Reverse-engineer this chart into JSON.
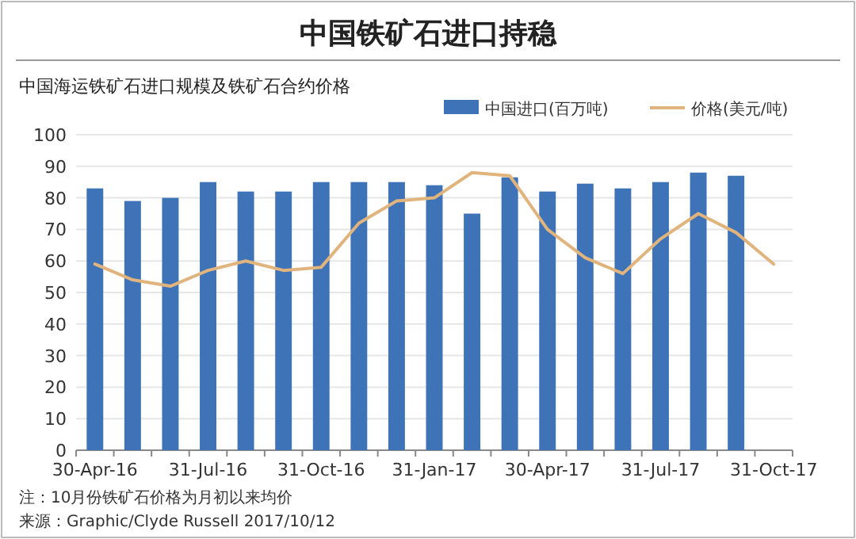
{
  "chart_data": {
    "type": "bar",
    "title": "中国铁矿石进口持稳",
    "subtitle": "中国海运铁矿石进口规模及铁矿石合约价格",
    "categories": [
      "30-Apr-16",
      null,
      null,
      "31-Jul-16",
      null,
      null,
      "31-Oct-16",
      null,
      null,
      "31-Jan-17",
      null,
      null,
      "30-Apr-17",
      null,
      null,
      "31-Jul-17",
      null,
      null,
      "31-Oct-17"
    ],
    "series": [
      {
        "name": "中国进口(百万吨)",
        "color": "#3f73b8",
        "values": [
          83,
          79,
          80,
          85,
          82,
          82,
          85,
          85,
          85,
          84,
          75,
          86.5,
          82,
          84.5,
          83,
          85,
          88,
          87,
          null
        ]
      },
      {
        "name": "价格(美元/吨)",
        "type": "line",
        "color": "#e0b47c",
        "values": [
          59,
          54,
          52,
          57,
          60,
          57,
          58,
          72,
          79,
          80,
          88,
          87,
          70,
          61,
          56,
          67,
          75,
          69,
          59
        ]
      }
    ],
    "ylim": [
      0,
      100
    ],
    "yticks": [
      0,
      10,
      20,
      30,
      40,
      50,
      60,
      70,
      80,
      90,
      100
    ],
    "grid": "y",
    "legend": "top right",
    "annotations": [
      "注：10月份铁矿石价格为月初以来均价",
      "来源：Graphic/Clyde Russell 2017/10/12"
    ]
  }
}
